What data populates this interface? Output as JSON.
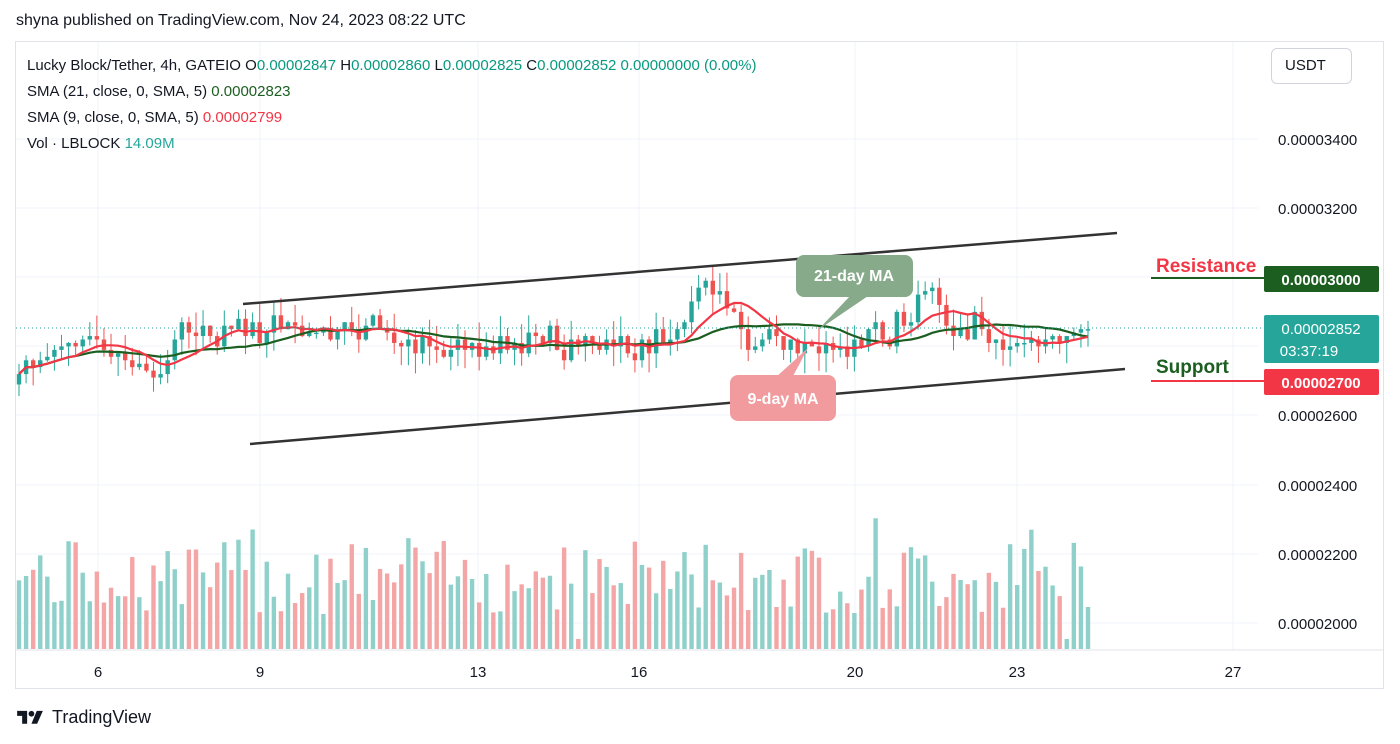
{
  "header": {
    "text": "shyna published on TradingView.com, Nov 24, 2023 08:22 UTC"
  },
  "legend": {
    "symbol": "Lucky Block/Tether, 4h, GATEIO",
    "o_label": "O",
    "o_value": "0.00002847",
    "h_label": "H",
    "h_value": "0.00002860",
    "l_label": "L",
    "l_value": "0.00002825",
    "c_label": "C",
    "c_value": "0.00002852",
    "change": "0.00000000 (0.00%)",
    "sma21_label": "SMA (21, close, 0, SMA, 5)",
    "sma21_value": "0.00002823",
    "sma9_label": "SMA (9, close, 0, SMA, 5)",
    "sma9_value": "0.00002799",
    "vol_label": "Vol · LBLOCK",
    "vol_value": "14.09M"
  },
  "currency": "USDT",
  "footer": {
    "brand": "TradingView"
  },
  "colors": {
    "up": "#26a69a",
    "down": "#ef5350",
    "sma21": "#1b5e20",
    "sma9": "#f23645",
    "vol_up": "#8fd1ca",
    "vol_down": "#f4a5a5",
    "resistance": "#1b5e20",
    "support": "#f23645"
  },
  "chart_data": {
    "type": "candlestick",
    "timeframe": "4h",
    "x_tick_labels": [
      "6",
      "9",
      "13",
      "16",
      "20",
      "23",
      "27"
    ],
    "y_tick_labels": [
      "0.00003400",
      "0.00003200",
      "0.00003000",
      "0.00002800",
      "0.00002600",
      "0.00002400",
      "0.00002200",
      "0.00002000"
    ],
    "ylim": [
      1.95e-05,
      3.55e-05
    ],
    "grid": true,
    "annotations": [
      {
        "type": "label",
        "text": "21-day MA",
        "color": "#86aa8a"
      },
      {
        "type": "label",
        "text": "9-day MA",
        "color": "#f29b9f"
      },
      {
        "type": "label",
        "text": "Resistance",
        "color": "#f23645"
      },
      {
        "type": "label",
        "text": "Support",
        "color": "#1b5e20"
      }
    ],
    "price_labels": {
      "resistance": "0.00003000",
      "current": "0.00002852",
      "countdown": "03:37:19",
      "support": "0.00002700"
    },
    "channel": {
      "upper": [
        [
          2.9e-05,
          3.13e-05
        ]
      ],
      "lower": [
        [
          2.52e-05,
          2.71e-05
        ]
      ]
    },
    "closes": [
      2.72e-05,
      2.76e-05,
      2.74e-05,
      2.76e-05,
      2.77e-05,
      2.79e-05,
      2.8e-05,
      2.81e-05,
      2.8e-05,
      2.82e-05,
      2.83e-05,
      2.82e-05,
      2.79e-05,
      2.77e-05,
      2.78e-05,
      2.76e-05,
      2.74e-05,
      2.75e-05,
      2.73e-05,
      2.71e-05,
      2.72e-05,
      2.76e-05,
      2.82e-05,
      2.87e-05,
      2.84e-05,
      2.83e-05,
      2.86e-05,
      2.83e-05,
      2.8e-05,
      2.86e-05,
      2.85e-05,
      2.88e-05,
      2.83e-05,
      2.87e-05,
      2.81e-05,
      2.84e-05,
      2.89e-05,
      2.85e-05,
      2.87e-05,
      2.86e-05,
      2.83e-05,
      2.84e-05,
      2.84e-05,
      2.85e-05,
      2.82e-05,
      2.85e-05,
      2.87e-05,
      2.85e-05,
      2.82e-05,
      2.86e-05,
      2.89e-05,
      2.85e-05,
      2.84e-05,
      2.81e-05,
      2.8e-05,
      2.82e-05,
      2.78e-05,
      2.83e-05,
      2.8e-05,
      2.79e-05,
      2.77e-05,
      2.79e-05,
      2.82e-05,
      2.79e-05,
      2.81e-05,
      2.77e-05,
      2.8e-05,
      2.78e-05,
      2.83e-05,
      2.79e-05,
      2.81e-05,
      2.78e-05,
      2.84e-05,
      2.83e-05,
      2.81e-05,
      2.86e-05,
      2.79e-05,
      2.76e-05,
      2.82e-05,
      2.8e-05,
      2.83e-05,
      2.81e-05,
      2.79e-05,
      2.82e-05,
      2.8e-05,
      2.83e-05,
      2.78e-05,
      2.76e-05,
      2.82e-05,
      2.78e-05,
      2.85e-05,
      2.81e-05,
      2.82e-05,
      2.85e-05,
      2.87e-05,
      2.93e-05,
      2.97e-05,
      2.99e-05,
      2.95e-05,
      2.96e-05,
      2.91e-05,
      2.9e-05,
      2.85e-05,
      2.79e-05,
      2.8e-05,
      2.82e-05,
      2.85e-05,
      2.83e-05,
      2.79e-05,
      2.82e-05,
      2.78e-05,
      2.81e-05,
      2.8e-05,
      2.78e-05,
      2.81e-05,
      2.79e-05,
      2.8e-05,
      2.77e-05,
      2.82e-05,
      2.8e-05,
      2.85e-05,
      2.87e-05,
      2.82e-05,
      2.8e-05,
      2.9e-05,
      2.86e-05,
      2.87e-05,
      2.95e-05,
      2.96e-05,
      2.97e-05,
      2.92e-05,
      2.86e-05,
      2.83e-05,
      2.85e-05,
      2.82e-05,
      2.9e-05,
      2.85e-05,
      2.81e-05,
      2.82e-05,
      2.79e-05,
      2.8e-05,
      2.81e-05,
      2.81e-05,
      2.82e-05,
      2.8e-05,
      2.82e-05,
      2.83e-05,
      2.81e-05,
      2.83e-05,
      2.84e-05,
      2.85e-05,
      2.85e-05
    ]
  }
}
